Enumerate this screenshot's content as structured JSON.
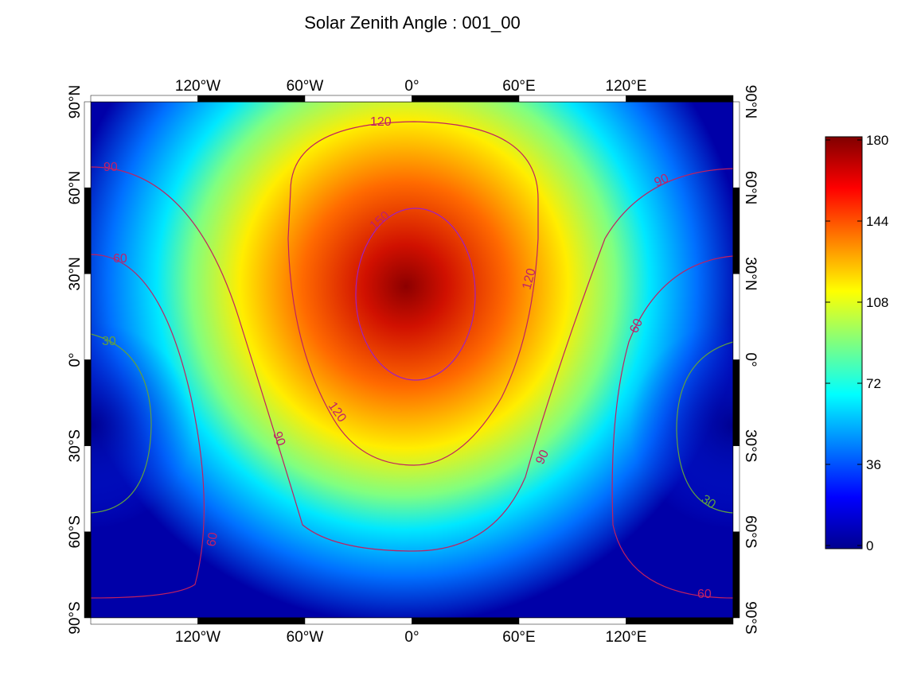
{
  "chart_data": {
    "type": "map",
    "title": "Solar Zenith Angle : 001_00",
    "xlim": [
      -180,
      180
    ],
    "xticks": [
      {
        "value": -120,
        "label": "120°W"
      },
      {
        "value": -60,
        "label": "60°W"
      },
      {
        "value": 0,
        "label": "0°"
      },
      {
        "value": 60,
        "label": "60°E"
      },
      {
        "value": 120,
        "label": "120°E"
      }
    ],
    "ylim": [
      -90,
      90
    ],
    "yticks": [
      {
        "value": 90,
        "label": "90°N"
      },
      {
        "value": 60,
        "label": "60°N"
      },
      {
        "value": 30,
        "label": "30°N"
      },
      {
        "value": 0,
        "label": "0°"
      },
      {
        "value": -30,
        "label": "30°S"
      },
      {
        "value": -60,
        "label": "60°S"
      },
      {
        "value": -90,
        "label": "90°S"
      }
    ],
    "colorbar": {
      "lim": [
        0,
        180
      ],
      "ticks": [
        0,
        36,
        72,
        108,
        144,
        180
      ]
    },
    "contour_labels": [
      120,
      150,
      90,
      60,
      30,
      120,
      90,
      60,
      120,
      90,
      90,
      60,
      30,
      60
    ]
  }
}
